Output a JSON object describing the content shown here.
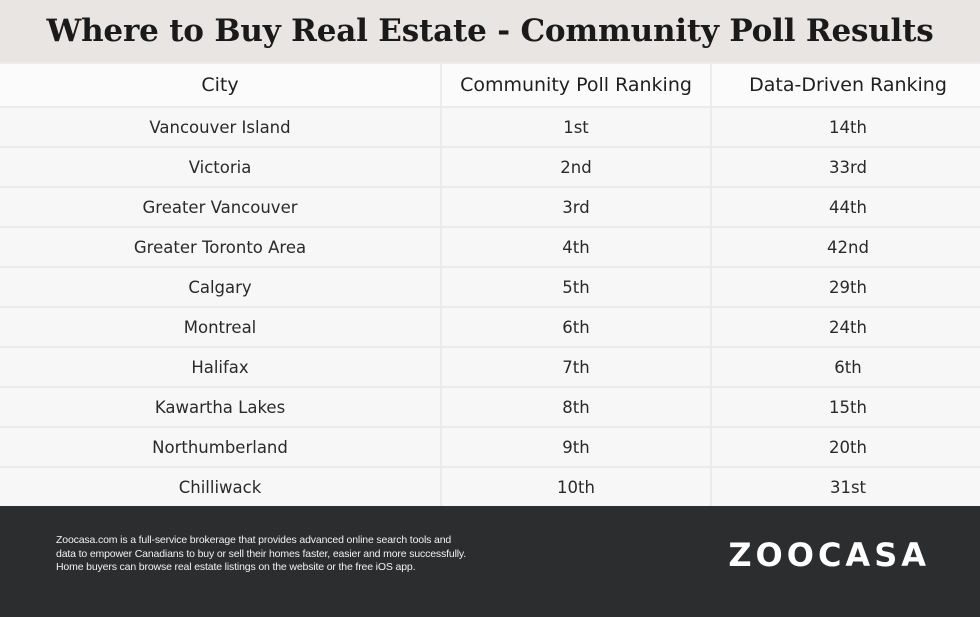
{
  "title": "Where to Buy Real Estate - Community Poll Results",
  "table": {
    "headers": [
      "City",
      "Community Poll Ranking",
      "Data-Driven Ranking"
    ],
    "rows": [
      [
        "Vancouver Island",
        "1st",
        "14th"
      ],
      [
        "Victoria",
        "2nd",
        "33rd"
      ],
      [
        "Greater Vancouver",
        "3rd",
        "44th"
      ],
      [
        "Greater Toronto Area",
        "4th",
        "42nd"
      ],
      [
        "Calgary",
        "5th",
        "29th"
      ],
      [
        "Montreal",
        "6th",
        "24th"
      ],
      [
        "Halifax",
        "7th",
        "6th"
      ],
      [
        "Kawartha Lakes",
        "8th",
        "15th"
      ],
      [
        "Northumberland",
        "9th",
        "20th"
      ],
      [
        "Chilliwack",
        "10th",
        "31st"
      ]
    ]
  },
  "footer": {
    "lines": [
      "Zoocasa.com is a full-service brokerage that provides advanced online search tools and",
      "data to empower Canadians to buy or sell their homes faster, easier and more successfully.",
      "Home buyers can browse real estate listings on the website or the free iOS app."
    ],
    "logo": "ZOOCASA"
  },
  "colors": {
    "title_bar": "#e8e5e2",
    "footer_bg": "#2b2d2f",
    "cell_bg": "#f7f7f7",
    "grid_line": "#ebebeb"
  }
}
